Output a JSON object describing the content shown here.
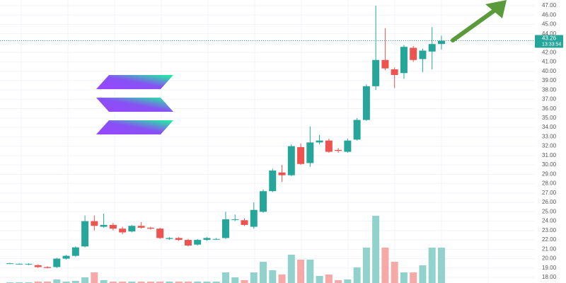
{
  "chart_data": {
    "type": "candlestick",
    "categories": [
      null,
      null,
      null,
      null,
      null,
      null,
      null,
      null,
      null,
      null,
      null,
      null,
      null,
      null,
      null,
      null,
      null,
      null,
      null,
      null,
      null,
      null,
      null,
      null,
      null,
      null,
      null,
      null,
      null,
      null,
      null,
      null,
      null,
      null,
      null,
      null,
      null,
      null,
      null,
      null,
      null,
      null,
      null,
      null,
      null,
      null,
      null
    ],
    "open": [
      19.5,
      19.45,
      19.4,
      19.3,
      19.1,
      19.1,
      20.0,
      20.3,
      21.3,
      24.0,
      23.4,
      23.6,
      23.2,
      22.9,
      23.5,
      23.3,
      23.2,
      22.1,
      22.2,
      22.0,
      21.5,
      22.0,
      22.1,
      22.2,
      24.2,
      24.1,
      23.4,
      25.0,
      27.2,
      29.2,
      28.9,
      31.9,
      30.2,
      32.4,
      32.6,
      31.6,
      31.4,
      32.7,
      34.8,
      38.4,
      41.2,
      40.2,
      39.8,
      42.5,
      41.3,
      42.1,
      42.9
    ],
    "high": [
      19.55,
      19.5,
      19.5,
      19.4,
      19.2,
      20.1,
      20.4,
      21.3,
      24.6,
      24.6,
      24.8,
      23.8,
      23.4,
      23.6,
      23.9,
      23.4,
      23.3,
      22.3,
      22.3,
      22.1,
      22.1,
      22.3,
      22.2,
      25.0,
      24.7,
      24.3,
      26.0,
      27.4,
      29.6,
      30.0,
      32.2,
      32.3,
      34.1,
      33.2,
      32.8,
      31.8,
      32.8,
      35.0,
      38.6,
      47.0,
      44.6,
      40.4,
      42.8,
      42.7,
      42.4,
      44.7,
      43.8
    ],
    "low": [
      19.45,
      19.4,
      19.3,
      19.0,
      18.95,
      19.0,
      19.9,
      20.2,
      21.2,
      23.0,
      23.3,
      23.0,
      22.6,
      22.8,
      23.2,
      23.1,
      22.1,
      22.0,
      21.9,
      21.3,
      21.4,
      21.9,
      22.0,
      22.1,
      24.0,
      23.5,
      23.2,
      24.9,
      27.1,
      28.2,
      28.8,
      30.0,
      29.8,
      32.2,
      31.3,
      31.3,
      31.3,
      32.6,
      34.7,
      38.0,
      40.1,
      38.2,
      39.2,
      41.0,
      39.9,
      40.2,
      42.3
    ],
    "close": [
      19.5,
      19.45,
      19.45,
      19.1,
      19.0,
      20.0,
      20.3,
      21.2,
      24.0,
      23.5,
      23.6,
      23.2,
      22.8,
      23.5,
      23.3,
      23.2,
      22.2,
      22.2,
      22.0,
      21.4,
      22.0,
      22.2,
      22.1,
      24.2,
      24.2,
      23.6,
      25.2,
      27.2,
      29.4,
      28.9,
      32.0,
      30.1,
      32.4,
      32.6,
      31.4,
      31.5,
      32.6,
      34.8,
      38.4,
      41.2,
      40.3,
      39.6,
      42.6,
      41.2,
      42.2,
      42.9,
      43.26
    ],
    "volume": [
      1,
      1,
      1,
      2,
      2,
      5,
      2,
      3,
      8,
      15,
      4,
      2,
      2,
      2,
      2,
      2,
      2,
      2,
      2,
      2,
      2,
      2,
      2,
      15,
      8,
      4,
      15,
      30,
      18,
      12,
      40,
      33,
      33,
      10,
      12,
      4,
      5,
      22,
      50,
      95,
      50,
      30,
      15,
      15,
      25,
      50,
      50
    ],
    "up_color": "#26a69a",
    "down_color": "#ef5350",
    "up_volume_color": "#92d2cc",
    "down_volume_color": "#f7a9a7",
    "ylim": [
      17.4,
      47.6
    ],
    "yticks": [
      {
        "value": 18,
        "label": "18.00"
      },
      {
        "value": 19,
        "label": "19.00"
      },
      {
        "value": 20,
        "label": "20.00"
      },
      {
        "value": 21,
        "label": "21.00"
      },
      {
        "value": 22,
        "label": "22.00"
      },
      {
        "value": 23,
        "label": "23.00"
      },
      {
        "value": 24,
        "label": "24.00"
      },
      {
        "value": 25,
        "label": "25.00"
      },
      {
        "value": 26,
        "label": "26.00"
      },
      {
        "value": 27,
        "label": "27.00"
      },
      {
        "value": 28,
        "label": "28.00"
      },
      {
        "value": 29,
        "label": "29.00"
      },
      {
        "value": 30,
        "label": "30.00"
      },
      {
        "value": 31,
        "label": "31.00"
      },
      {
        "value": 32,
        "label": "32.00"
      },
      {
        "value": 33,
        "label": "33.00"
      },
      {
        "value": 34,
        "label": "34.00"
      },
      {
        "value": 35,
        "label": "35.00"
      },
      {
        "value": 36,
        "label": "36.00"
      },
      {
        "value": 37,
        "label": "37.00"
      },
      {
        "value": 38,
        "label": "38.00"
      },
      {
        "value": 39,
        "label": "39.00"
      },
      {
        "value": 40,
        "label": "40.00"
      },
      {
        "value": 41,
        "label": "41.00"
      },
      {
        "value": 42,
        "label": "42.00"
      },
      {
        "value": 44,
        "label": "44.00"
      },
      {
        "value": 45,
        "label": "45.00"
      },
      {
        "value": 46,
        "label": "46.00"
      },
      {
        "value": 47,
        "label": "47.00"
      }
    ],
    "grid": true,
    "last_price": {
      "value": 43.26,
      "label": "43.26"
    },
    "countdown": "13:33:54"
  }
}
